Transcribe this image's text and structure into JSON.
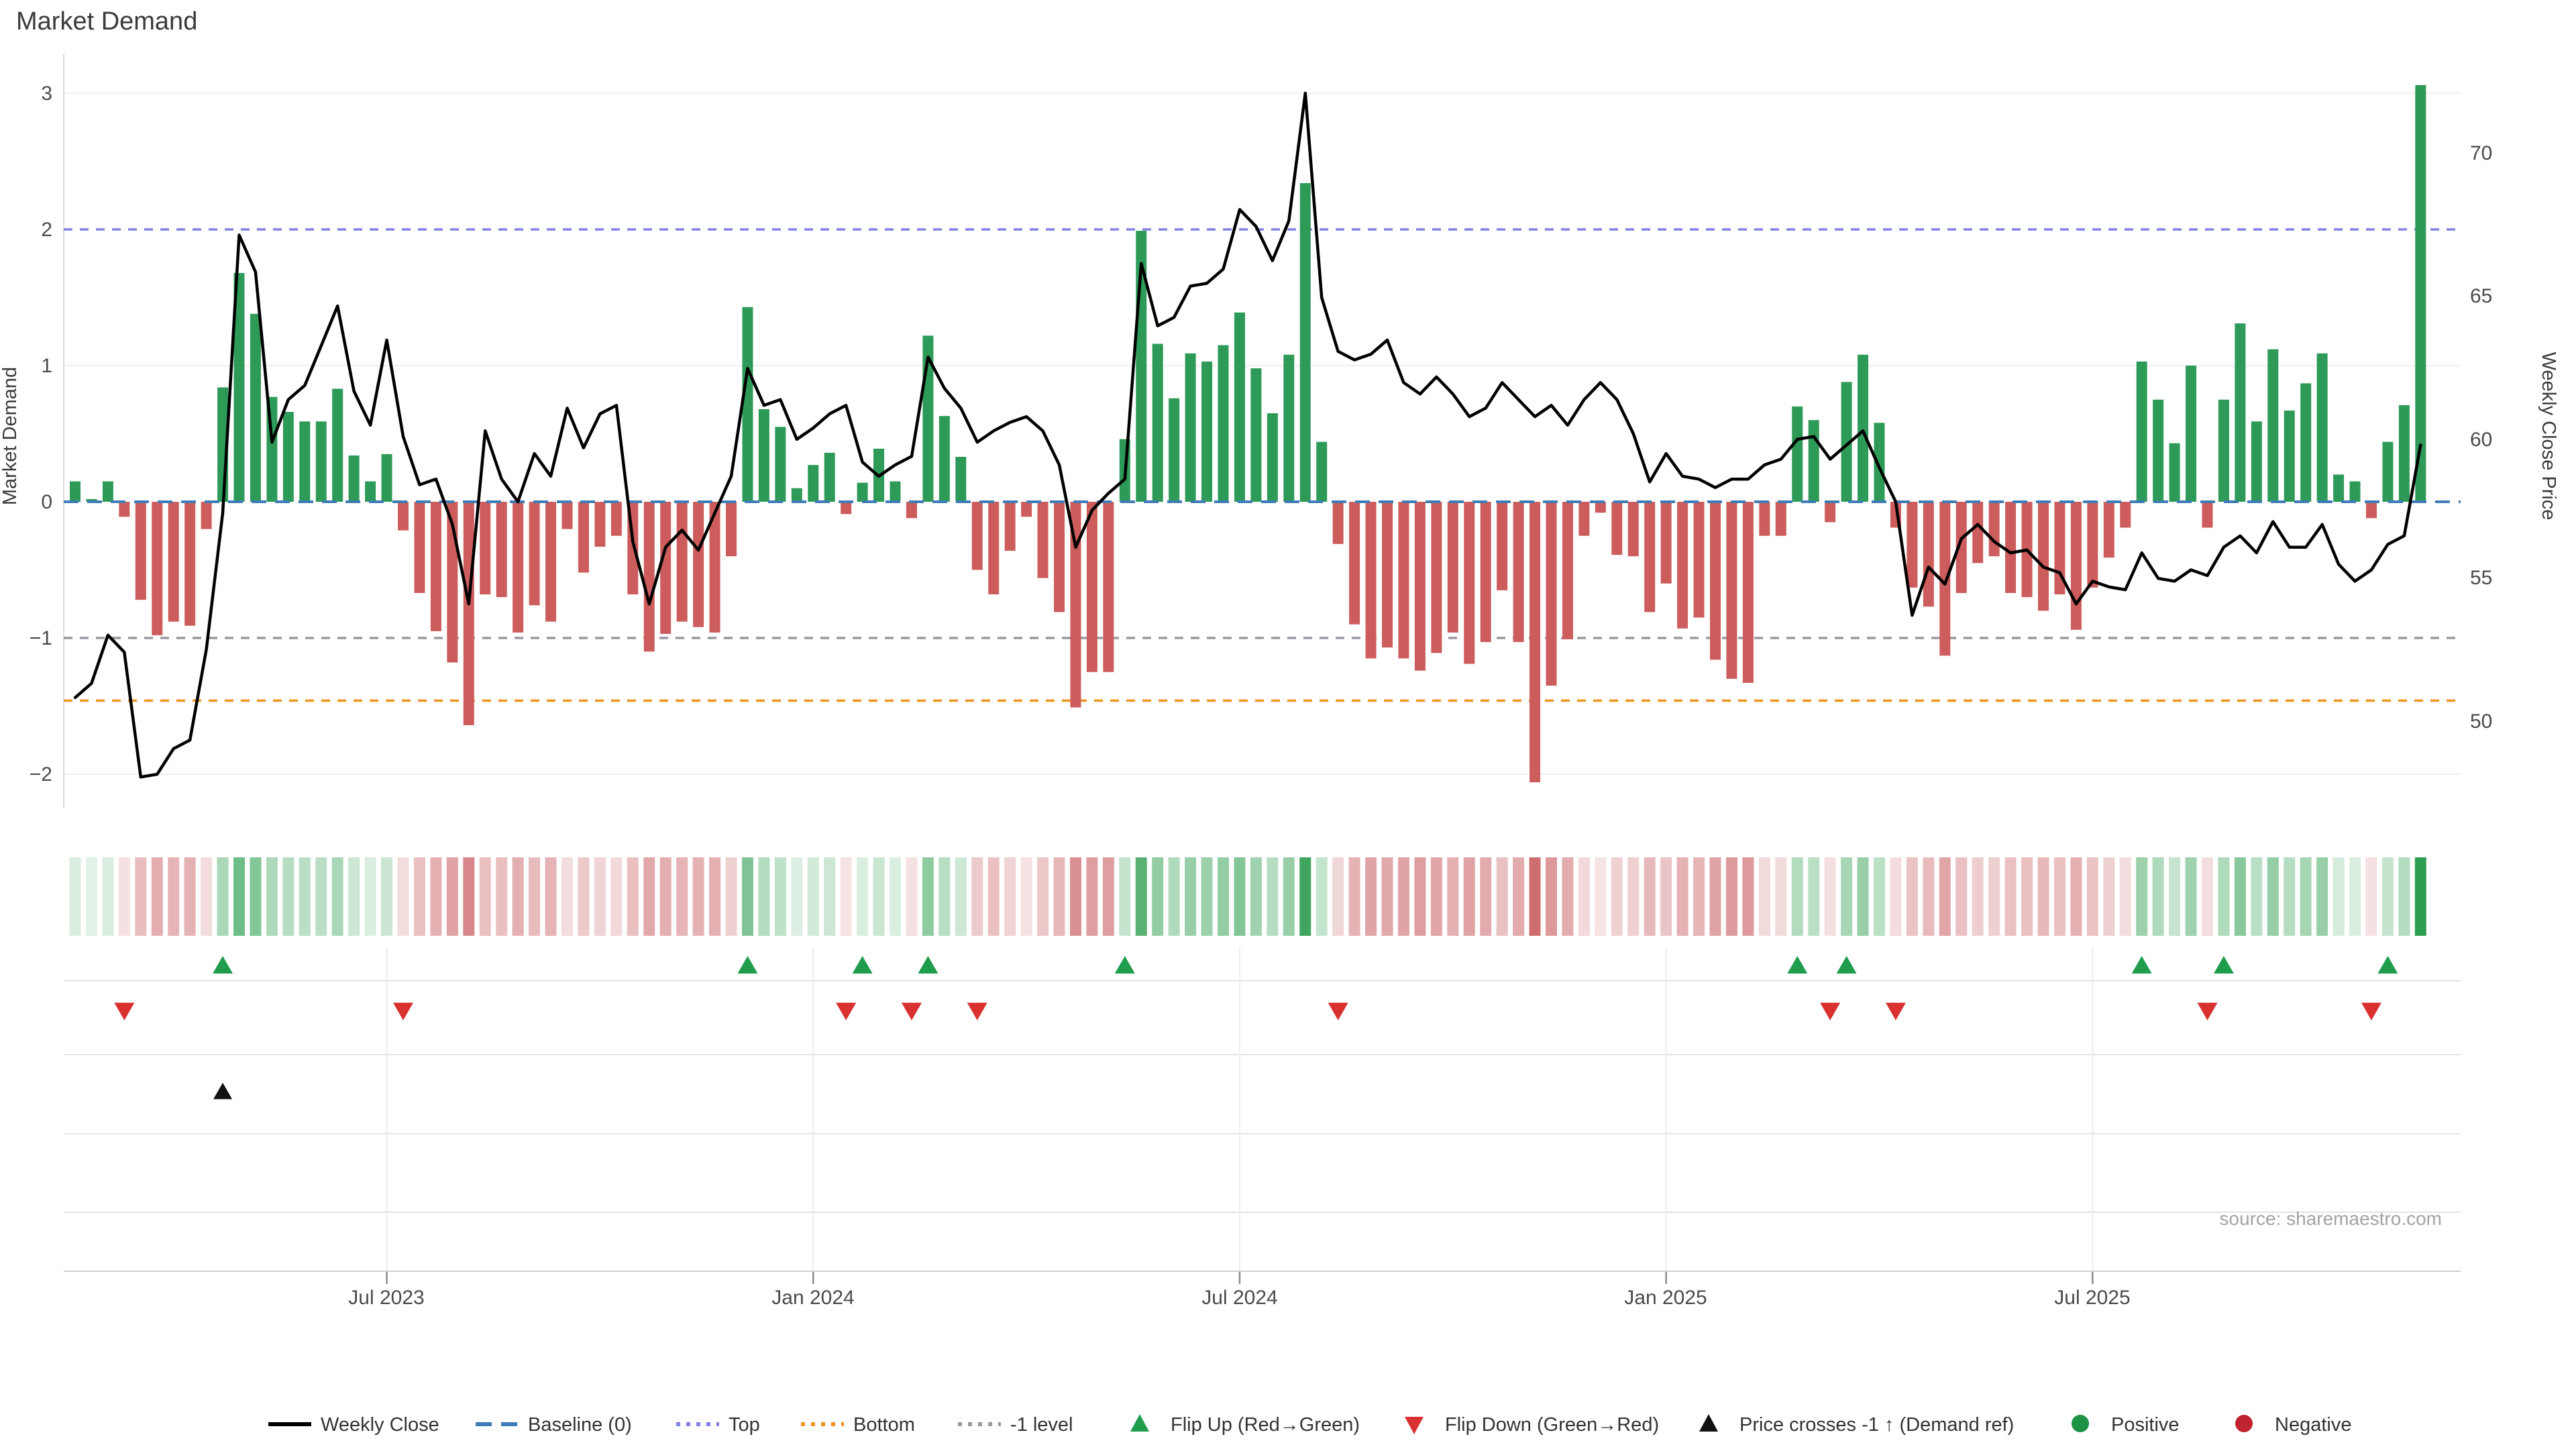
{
  "title": "Market Demand",
  "source": "source: sharemaestro.com",
  "chart_data": {
    "type": "bar+line",
    "title": "Market Demand",
    "ylabel_left": "Market Demand",
    "ylabel_right": "Weekly Close Price",
    "ylim_left": [
      -2.3,
      3.2
    ],
    "ylim_right": [
      47.5,
      72.5
    ],
    "grid": "horizontal-light",
    "legend_position": "bottom-center",
    "yticks_left": [
      "3",
      "2",
      "1",
      "0",
      "−1",
      "−2"
    ],
    "yticks_left_values": [
      3,
      2,
      1,
      0,
      -1,
      -2
    ],
    "yticks_right": [
      "70",
      "65",
      "60",
      "55",
      "50"
    ],
    "yticks_right_values": [
      70,
      65,
      60,
      55,
      50
    ],
    "x_ticks": [
      {
        "label": "Jul 2023",
        "week": 19
      },
      {
        "label": "Jan 2024",
        "week": 45
      },
      {
        "label": "Jul 2024",
        "week": 71
      },
      {
        "label": "Jan 2025",
        "week": 97
      },
      {
        "label": "Jul 2025",
        "week": 123
      }
    ],
    "reference_lines": {
      "baseline": {
        "value": 0,
        "color": "#3f7cb6",
        "style": "dashed"
      },
      "top": {
        "value": 2,
        "color": "#8080e6",
        "style": "dotted"
      },
      "minus_one": {
        "value": -1,
        "color": "#99999f",
        "style": "dotted"
      },
      "bottom": {
        "value": -1.46,
        "color": "#f0941f",
        "style": "dotted"
      }
    },
    "series": [
      {
        "name": "Market Demand (weekly bars)",
        "type": "bar",
        "positive_color": "#2e9a58",
        "negative_color": "#cd5c5c",
        "values": [
          0.15,
          0.02,
          0.15,
          -0.11,
          -0.72,
          -0.98,
          -0.88,
          -0.91,
          -0.2,
          0.84,
          1.68,
          1.38,
          0.77,
          0.66,
          0.59,
          0.59,
          0.83,
          0.34,
          0.15,
          0.35,
          -0.21,
          -0.67,
          -0.95,
          -1.18,
          -1.64,
          -0.68,
          -0.7,
          -0.96,
          -0.76,
          -0.88,
          -0.2,
          -0.52,
          -0.33,
          -0.25,
          -0.68,
          -1.1,
          -0.97,
          -0.88,
          -0.92,
          -0.96,
          -0.4,
          1.43,
          0.68,
          0.55,
          0.1,
          0.27,
          0.36,
          -0.09,
          0.14,
          0.39,
          0.15,
          -0.12,
          1.22,
          0.63,
          0.33,
          -0.5,
          -0.68,
          -0.36,
          -0.11,
          -0.56,
          -0.81,
          -1.51,
          -1.25,
          -1.25,
          0.46,
          1.99,
          1.16,
          0.76,
          1.09,
          1.03,
          1.15,
          1.39,
          0.98,
          0.65,
          1.08,
          2.34,
          0.44,
          -0.31,
          -0.9,
          -1.15,
          -1.07,
          -1.15,
          -1.24,
          -1.11,
          -0.96,
          -1.19,
          -1.03,
          -0.65,
          -1.03,
          -2.06,
          -1.35,
          -1.01,
          -0.25,
          -0.08,
          -0.39,
          -0.4,
          -0.81,
          -0.6,
          -0.93,
          -0.85,
          -1.16,
          -1.3,
          -1.33,
          -0.25,
          -0.25,
          0.7,
          0.6,
          -0.15,
          0.88,
          1.08,
          0.58,
          -0.19,
          -0.63,
          -0.77,
          -1.13,
          -0.67,
          -0.45,
          -0.4,
          -0.67,
          -0.7,
          -0.8,
          -0.68,
          -0.94,
          -0.63,
          -0.41,
          -0.19,
          1.03,
          0.75,
          0.43,
          1.0,
          -0.19,
          0.75,
          1.31,
          0.59,
          1.12,
          0.67,
          0.87,
          1.09,
          0.2,
          0.15,
          -0.12,
          0.44,
          0.71,
          3.06
        ]
      },
      {
        "name": "Weekly Close",
        "type": "line",
        "color": "#000000",
        "values": [
          50.8,
          51.3,
          53.0,
          52.4,
          48.0,
          48.1,
          49.0,
          49.3,
          52.5,
          57.3,
          67.1,
          65.8,
          59.8,
          61.3,
          61.8,
          63.2,
          64.6,
          61.6,
          60.4,
          63.4,
          60.0,
          58.3,
          58.5,
          56.9,
          54.1,
          60.2,
          58.5,
          57.7,
          59.4,
          58.6,
          61.0,
          59.6,
          60.8,
          61.1,
          56.3,
          54.1,
          56.1,
          56.7,
          56.0,
          57.3,
          58.6,
          62.4,
          61.1,
          61.3,
          59.9,
          60.3,
          60.8,
          61.1,
          59.1,
          58.6,
          59.0,
          59.3,
          62.8,
          61.7,
          61.0,
          59.8,
          60.2,
          60.5,
          60.7,
          60.2,
          59.0,
          56.1,
          57.4,
          58.0,
          58.5,
          66.1,
          63.9,
          64.2,
          65.3,
          65.4,
          65.9,
          68.0,
          67.4,
          66.2,
          67.6,
          72.1,
          64.9,
          63.0,
          62.7,
          62.9,
          63.4,
          61.9,
          61.5,
          62.1,
          61.5,
          60.7,
          61.0,
          61.9,
          61.3,
          60.7,
          61.1,
          60.4,
          61.3,
          61.9,
          61.3,
          60.1,
          58.4,
          59.4,
          58.6,
          58.5,
          58.2,
          58.5,
          58.5,
          59.0,
          59.2,
          59.9,
          60.0,
          59.2,
          59.7,
          60.2,
          58.9,
          57.7,
          53.7,
          55.4,
          54.8,
          56.4,
          56.9,
          56.3,
          55.9,
          56.0,
          55.4,
          55.2,
          54.1,
          54.9,
          54.7,
          54.6,
          55.9,
          55.0,
          54.9,
          55.3,
          55.1,
          56.1,
          56.5,
          55.9,
          57.0,
          56.1,
          56.1,
          56.9,
          55.5,
          54.9,
          55.3,
          56.2,
          56.5,
          59.7
        ]
      }
    ],
    "heatmap_strip": {
      "description": "per-week intensity strip, green positive / red negative, intensity proportional to |demand|"
    },
    "markers": {
      "flip_up_weeks": [
        9,
        41,
        48,
        52,
        64,
        105,
        108,
        126,
        131,
        141
      ],
      "flip_down_weeks": [
        3,
        20,
        47,
        51,
        55,
        77,
        107,
        111,
        130,
        140
      ],
      "price_cross_weeks": [
        9
      ]
    }
  },
  "legend": {
    "items": [
      {
        "label": "Weekly Close",
        "swatch": "black-line"
      },
      {
        "label": "Baseline (0)",
        "swatch": "blue-dashed"
      },
      {
        "label": "Top",
        "swatch": "purple-dotted"
      },
      {
        "label": "Bottom",
        "swatch": "orange-dotted"
      },
      {
        "label": "-1 level",
        "swatch": "gray-dotted"
      },
      {
        "label": "Flip Up (Red→Green)",
        "swatch": "green-up-triangle"
      },
      {
        "label": "Flip Down (Green→Red)",
        "swatch": "red-down-triangle"
      },
      {
        "label": "Price crosses -1 ↑ (Demand ref)",
        "swatch": "black-up-triangle"
      },
      {
        "label": "Positive",
        "swatch": "green-dot"
      },
      {
        "label": "Negative",
        "swatch": "red-dot"
      }
    ]
  },
  "colors": {
    "bar_positive": "#2e9a58",
    "bar_negative": "#cd5c5c",
    "line": "#000000",
    "baseline_dash": "#3f7cb6",
    "top_dash": "#8080e6",
    "bottom_dash": "#f0941f",
    "minus1_dash": "#99999f",
    "flip_up_marker": "#1f9d4d",
    "flip_down_marker": "#d93030",
    "price_cross_marker": "#111111",
    "positive_dot": "#1d9144",
    "negative_dot": "#bf2430",
    "heat_green": "#2e9e50",
    "heat_red": "#c44e52",
    "gridline": "#efeff3"
  }
}
